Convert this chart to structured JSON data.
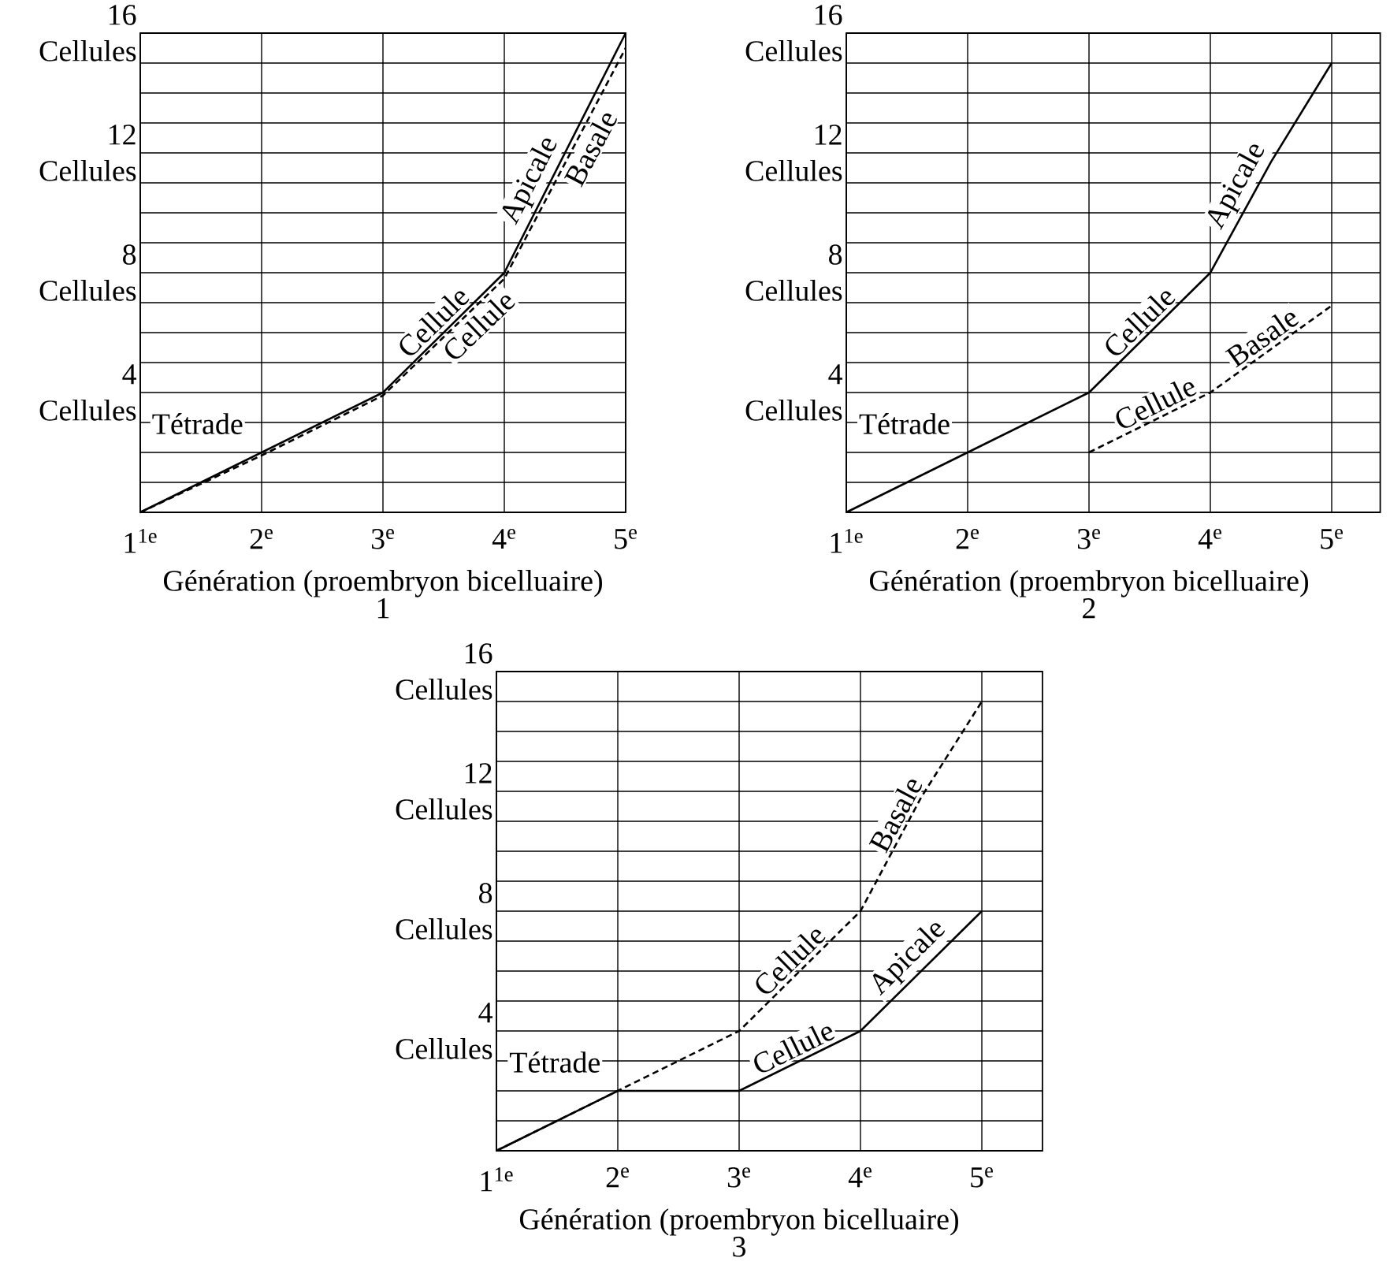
{
  "chart_data": [
    {
      "type": "line",
      "title": "1",
      "xlabel": "Génération (proembryon bicelluaire)",
      "xlim": [
        1,
        5
      ],
      "xticks": [
        {
          "value": 1,
          "label": "1$^{1e}$"
        },
        {
          "value": 2,
          "label": "2$^{e}$"
        },
        {
          "value": 3,
          "label": "3$^{e}$"
        },
        {
          "value": 4,
          "label": "4$^{e}$"
        },
        {
          "value": 5,
          "label": "5$^{e}$"
        }
      ],
      "ylim": [
        0,
        16
      ],
      "yticks": [
        {
          "value": 1,
          "label": null
        },
        {
          "value": 2,
          "label": null
        },
        {
          "value": 3,
          "label": null
        },
        {
          "value": 4,
          "label": "4 Cellules"
        },
        {
          "value": 5,
          "label": null
        },
        {
          "value": 6,
          "label": null
        },
        {
          "value": 7,
          "label": null
        },
        {
          "value": 8,
          "label": "8 Cellules"
        },
        {
          "value": 9,
          "label": null
        },
        {
          "value": 10,
          "label": null
        },
        {
          "value": 11,
          "label": null
        },
        {
          "value": 12,
          "label": "12 Cellules"
        },
        {
          "value": 13,
          "label": null
        },
        {
          "value": 14,
          "label": null
        },
        {
          "value": 15,
          "label": null
        },
        {
          "value": 16,
          "label": "16 Cellules"
        }
      ],
      "grid": true,
      "marker": "none",
      "series": [
        {
          "color": "#000000",
          "line_style": "solid",
          "x": [
            1,
            2,
            3,
            4,
            5
          ],
          "values": [
            0,
            2,
            4,
            8,
            16
          ]
        },
        {
          "color": "#000000",
          "line_style": "dashed",
          "x": [
            1,
            2,
            3,
            4,
            5
          ],
          "values": [
            0,
            1.9,
            3.9,
            7.8,
            15.5
          ]
        }
      ],
      "annotations": [
        "Tétrade",
        {
          "text": "Cellule",
          "x": 3.5,
          "y": 6
        },
        {
          "text": "Apicale",
          "x": 4.35,
          "y": 10.8
        },
        {
          "text": "Cellule",
          "x": 3.7,
          "y": 6.6
        },
        {
          "text": "Basale",
          "x": 4.6,
          "y": 12.4
        }
      ]
    },
    {
      "type": "line",
      "title": "2",
      "xlabel": "Génération (proembryon bicelluaire)",
      "xlim": [
        1,
        5.4
      ],
      "xticks": [
        {
          "value": 1,
          "label": "1$^{1e}$"
        },
        {
          "value": 2,
          "label": "2$^{e}$"
        },
        {
          "value": 3,
          "label": "3$^{e}$"
        },
        {
          "value": 4,
          "label": "4$^{e}$"
        },
        {
          "value": 5,
          "label": "5$^{e}$"
        }
      ],
      "ylim": [
        0,
        16
      ],
      "yticks": [
        {
          "value": 1,
          "label": null
        },
        {
          "value": 2,
          "label": null
        },
        {
          "value": 3,
          "label": null
        },
        {
          "value": 4,
          "label": "4 Cellules"
        },
        {
          "value": 5,
          "label": null
        },
        {
          "value": 6,
          "label": null
        },
        {
          "value": 7,
          "label": null
        },
        {
          "value": 8,
          "label": "8 Cellules"
        },
        {
          "value": 9,
          "label": null
        },
        {
          "value": 10,
          "label": null
        },
        {
          "value": 11,
          "label": null
        },
        {
          "value": 12,
          "label": "12 Cellules"
        },
        {
          "value": 13,
          "label": null
        },
        {
          "value": 14,
          "label": null
        },
        {
          "value": 15,
          "label": null
        },
        {
          "value": 16,
          "label": "16 Cellules"
        }
      ],
      "grid": true,
      "marker": "none",
      "series": [
        {
          "color": "#000000",
          "line_style": "solid",
          "x": [
            1,
            2,
            3,
            4,
            4.5,
            5
          ],
          "values": [
            0,
            2,
            4,
            8,
            11.7,
            15
          ]
        },
        {
          "color": "#000000",
          "line_style": "dashed",
          "x": [
            3,
            4,
            5
          ],
          "values": [
            2,
            4,
            6.9
          ]
        }
      ],
      "annotations": [
        "Tétrade",
        {
          "text": "Cellule",
          "x": 3.5,
          "y": 6
        },
        {
          "text": "Apicale",
          "x": 4.35,
          "y": 10.6
        },
        {
          "text": "Cellule",
          "x": 3.6,
          "y": 3.2
        },
        {
          "text": "Basale",
          "x": 4.5,
          "y": 5.45
        }
      ]
    },
    {
      "type": "line",
      "title": "3",
      "xlabel": "Génération (proembryon bicelluaire)",
      "xlim": [
        1,
        5.5
      ],
      "xticks": [
        {
          "value": 1,
          "label": "1$^{1e}$"
        },
        {
          "value": 2,
          "label": "2$^{e}$"
        },
        {
          "value": 3,
          "label": "3$^{e}$"
        },
        {
          "value": 4,
          "label": "4$^{e}$"
        },
        {
          "value": 5,
          "label": "5$^{e}$"
        }
      ],
      "ylim": [
        0,
        16
      ],
      "yticks": [
        {
          "value": 1,
          "label": null
        },
        {
          "value": 2,
          "label": null
        },
        {
          "value": 3,
          "label": null
        },
        {
          "value": 4,
          "label": "4 Cellules"
        },
        {
          "value": 5,
          "label": null
        },
        {
          "value": 6,
          "label": null
        },
        {
          "value": 7,
          "label": null
        },
        {
          "value": 8,
          "label": "8 Cellules"
        },
        {
          "value": 9,
          "label": null
        },
        {
          "value": 10,
          "label": null
        },
        {
          "value": 11,
          "label": null
        },
        {
          "value": 12,
          "label": "12 Cellules"
        },
        {
          "value": 13,
          "label": null
        },
        {
          "value": 14,
          "label": null
        },
        {
          "value": 15,
          "label": null
        },
        {
          "value": 16,
          "label": "16 Cellules"
        }
      ],
      "grid": true,
      "marker": "none",
      "series": [
        {
          "color": "#000000",
          "line_style": "solid",
          "x": [
            1,
            2,
            3,
            4,
            5
          ],
          "values": [
            0,
            2,
            2,
            4,
            8
          ]
        },
        {
          "color": "#000000",
          "line_style": "dashed",
          "x": [
            1,
            2,
            3,
            4,
            4.5,
            5
          ],
          "values": [
            0,
            2,
            4,
            8,
            11.8,
            15
          ]
        }
      ],
      "annotations": [
        "Tétrade",
        {
          "text": "Cellule",
          "x": 3.5,
          "y": 6
        },
        {
          "text": "Basale",
          "x": 4.4,
          "y": 11
        },
        {
          "text": "Cellule",
          "x": 3.5,
          "y": 3
        },
        {
          "text": "Apicale",
          "x": 4.5,
          "y": 6
        }
      ]
    }
  ]
}
